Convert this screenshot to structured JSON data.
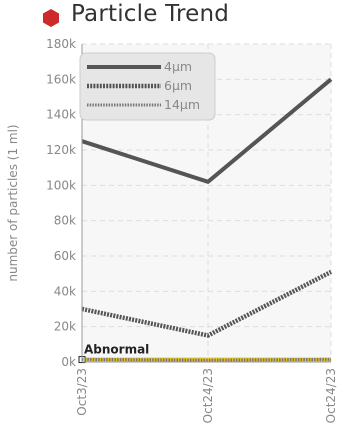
{
  "colors": {
    "title_icon": "#cc2b2b",
    "series_dark": "#555555",
    "abnormal": "#e6c42a",
    "grid": "#dddddd",
    "plot_bg": "#f7f7f7"
  },
  "icons": {
    "title_icon": "red-hexagon-icon"
  },
  "chart_data": {
    "type": "line",
    "title": "Particle Trend",
    "xlabel": "",
    "ylabel": "number of particles (1 ml)",
    "categories": [
      "Oct3/23",
      "Oct24/23",
      "Oct24/23"
    ],
    "ylim": [
      0,
      180000
    ],
    "yticks": [
      0,
      20000,
      40000,
      60000,
      80000,
      100000,
      120000,
      140000,
      160000,
      180000
    ],
    "ytick_labels": [
      "0k",
      "20k",
      "40k",
      "60k",
      "80k",
      "100k",
      "120k",
      "140k",
      "160k",
      "180k"
    ],
    "grid": true,
    "legend_position": "top-left",
    "series": [
      {
        "name": "4μm",
        "values": [
          125000,
          102000,
          160000
        ],
        "color": "#555555",
        "style": "solid"
      },
      {
        "name": "6μm",
        "values": [
          30000,
          15000,
          51000
        ],
        "color": "#555555",
        "style": "dotted"
      },
      {
        "name": "14μm",
        "values": [
          1500,
          1000,
          1500
        ],
        "color": "#777777",
        "style": "dotted-thin"
      }
    ],
    "annotations": [
      {
        "text": "Abnormal",
        "y_start": 0,
        "y_end": 2500,
        "color": "#e6c42a"
      }
    ]
  }
}
